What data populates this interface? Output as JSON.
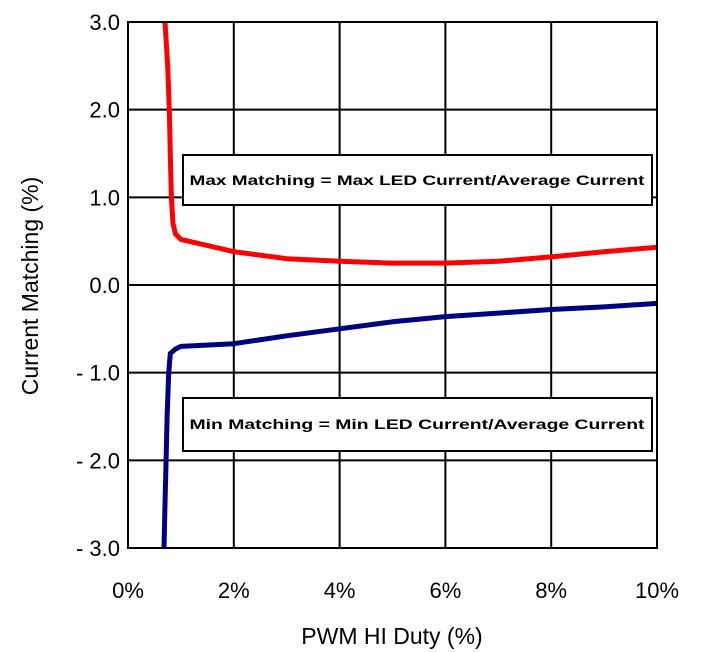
{
  "chart_data": {
    "type": "line",
    "title": "",
    "xlabel": "PWM HI Duty (%)",
    "ylabel": "Current Matching (%)",
    "xlim": [
      0,
      10
    ],
    "ylim": [
      -3,
      3
    ],
    "x_ticks": [
      0,
      2,
      4,
      6,
      8,
      10
    ],
    "x_tick_labels": [
      "0%",
      "2%",
      "4%",
      "6%",
      "8%",
      "10%"
    ],
    "y_ticks": [
      3,
      2,
      1,
      0,
      -1,
      -2,
      -3
    ],
    "y_tick_labels": [
      "3.0",
      "2.0",
      "1.0",
      "0.0",
      "- 1.0",
      "- 2.0",
      "- 3.0"
    ],
    "grid": true,
    "legend": "none",
    "series": [
      {
        "color": "#ff0000",
        "points": [
          [
            0.7,
            3.0
          ],
          [
            0.75,
            2.5
          ],
          [
            0.78,
            2.0
          ],
          [
            0.8,
            1.5
          ],
          [
            0.82,
            1.0
          ],
          [
            0.85,
            0.7
          ],
          [
            0.9,
            0.58
          ],
          [
            1.0,
            0.52
          ],
          [
            1.5,
            0.45
          ],
          [
            2.0,
            0.38
          ],
          [
            3.0,
            0.3
          ],
          [
            4.0,
            0.27
          ],
          [
            5.0,
            0.25
          ],
          [
            6.0,
            0.25
          ],
          [
            7.0,
            0.27
          ],
          [
            8.0,
            0.32
          ],
          [
            9.0,
            0.38
          ],
          [
            10.0,
            0.43
          ]
        ]
      },
      {
        "color": "#000080",
        "points": [
          [
            0.68,
            -3.0
          ],
          [
            0.7,
            -2.5
          ],
          [
            0.72,
            -2.0
          ],
          [
            0.74,
            -1.5
          ],
          [
            0.77,
            -1.0
          ],
          [
            0.8,
            -0.78
          ],
          [
            0.9,
            -0.73
          ],
          [
            1.0,
            -0.7
          ],
          [
            2.0,
            -0.67
          ],
          [
            3.0,
            -0.58
          ],
          [
            4.0,
            -0.5
          ],
          [
            5.0,
            -0.42
          ],
          [
            6.0,
            -0.36
          ],
          [
            7.0,
            -0.32
          ],
          [
            8.0,
            -0.28
          ],
          [
            9.0,
            -0.25
          ],
          [
            10.0,
            -0.21
          ]
        ]
      }
    ],
    "annotations": [
      {
        "text": "Max Matching = Max LED Current/Average Current"
      },
      {
        "text": "Min Matching = Min LED Current/Average Current"
      }
    ]
  }
}
